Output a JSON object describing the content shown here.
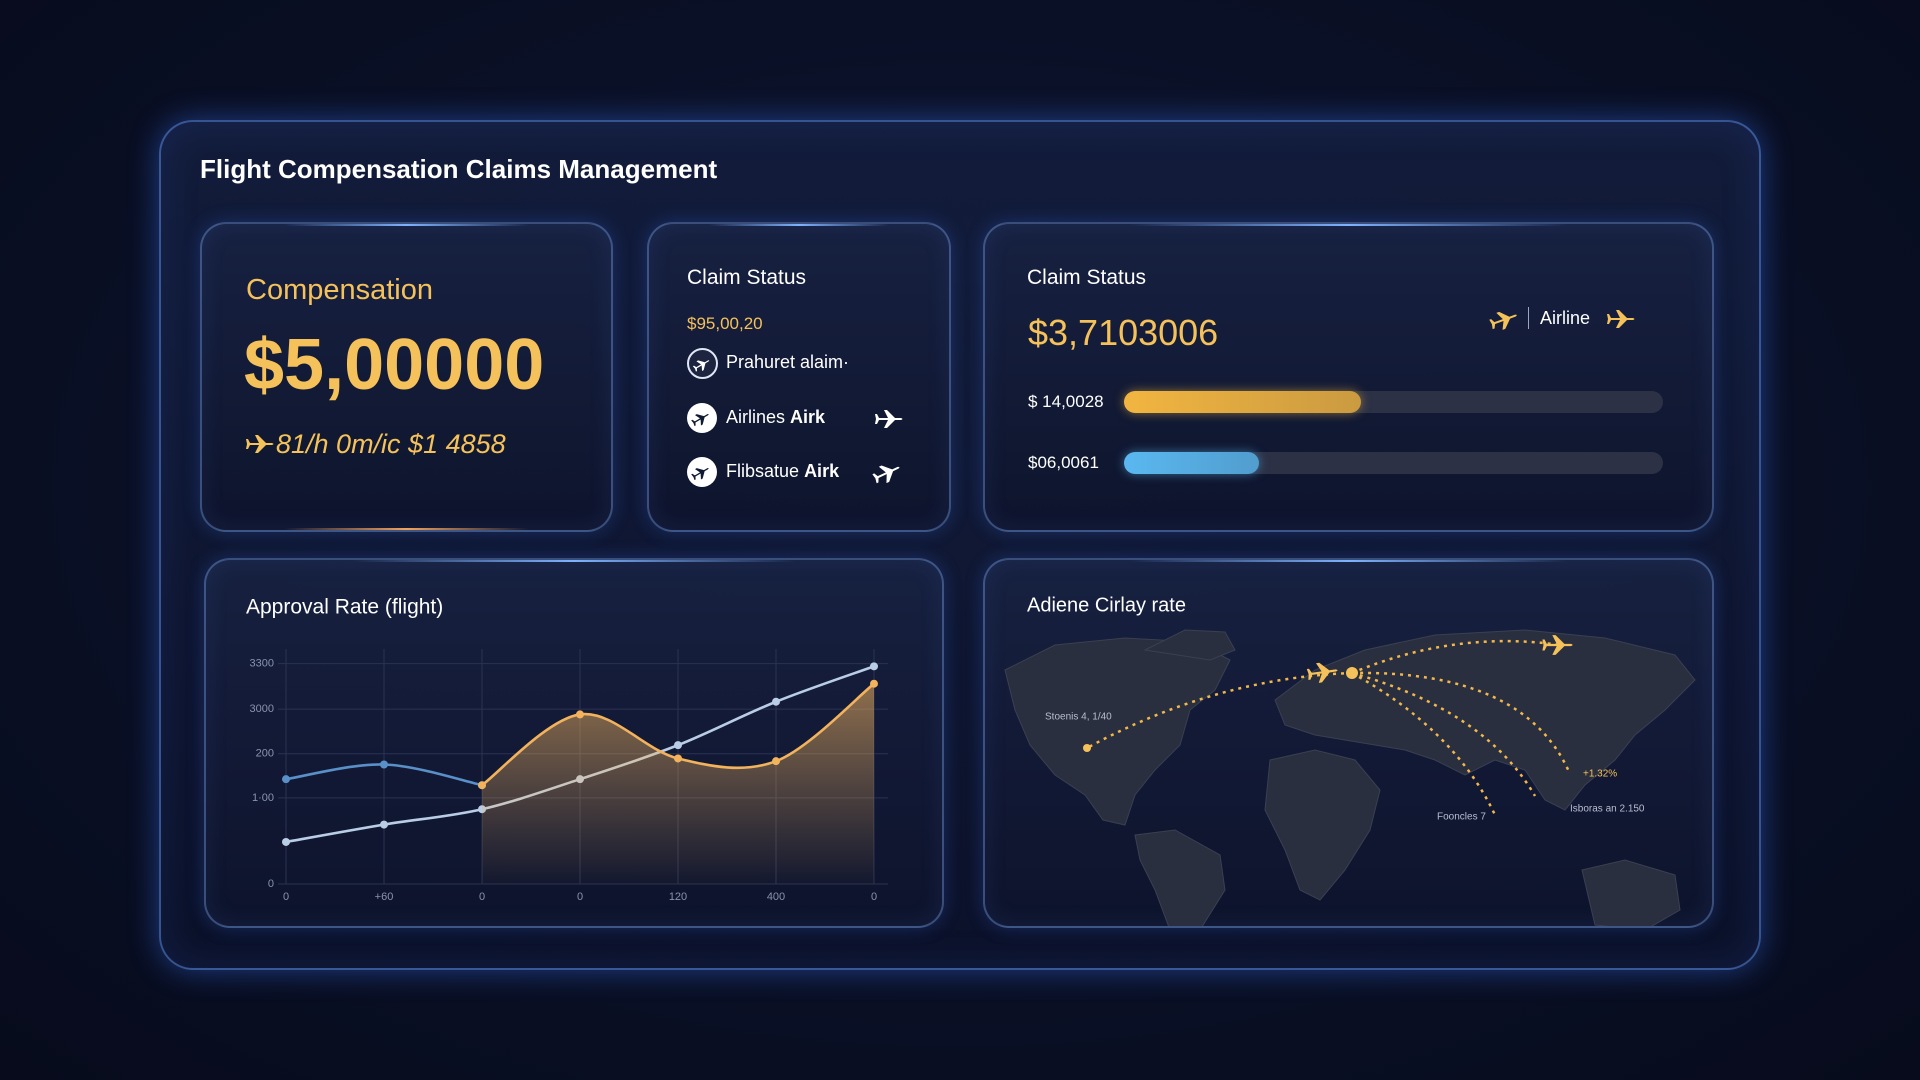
{
  "header": {
    "title": "Flight Compensation Claims Management"
  },
  "compensation": {
    "title": "Compensation",
    "amount": "$5,00000",
    "detail": "81/h 0m/ic $1 4858"
  },
  "claim_status_list": {
    "title": "Claim Status",
    "amount": "$95,00,20",
    "items": [
      {
        "text": "Prahuret alaim·"
      },
      {
        "text": "Airlines",
        "strong": "Airk"
      },
      {
        "text": "Flibsatue",
        "strong": "Airk"
      }
    ]
  },
  "claim_status_bars": {
    "title": "Claim Status",
    "amount": "$3,7103006",
    "legend": "Airline",
    "bars": [
      {
        "label": "$ 14,0028",
        "value": 44,
        "color": "#f2b540"
      },
      {
        "label": "$06,0061",
        "value": 25,
        "color": "#5ab8f0"
      }
    ]
  },
  "chart_data": {
    "type": "line",
    "title": "Approval Rate (flight)",
    "categories": [
      "0",
      "+60",
      "0",
      "0",
      "120",
      "400",
      "0"
    ],
    "series": [
      {
        "color": "#b9cde6",
        "values": [
          630,
          890,
          1120,
          1570,
          2080,
          2730,
          3260
        ]
      },
      {
        "color": "#5a90c8",
        "values": [
          1570,
          1790,
          1480,
          null,
          null,
          null,
          null
        ]
      },
      {
        "color": "#f2b35c",
        "fill": true,
        "values": [
          null,
          null,
          1480,
          2540,
          1880,
          1840,
          3000
        ]
      }
    ],
    "ylim": [
      0,
      3400
    ],
    "yticks": [
      0,
      {
        "value": 1290,
        "label": "1·00"
      },
      {
        "value": 1950,
        "label": "200"
      },
      {
        "value": 2620,
        "label": "3000"
      },
      3300
    ],
    "grid": true
  },
  "map": {
    "title": "Adiene Cirlay rate",
    "labels": [
      "Stoenis 4, 1/40",
      "+1.32%",
      "Fooncles 7",
      "Isboras an 2.150"
    ]
  }
}
